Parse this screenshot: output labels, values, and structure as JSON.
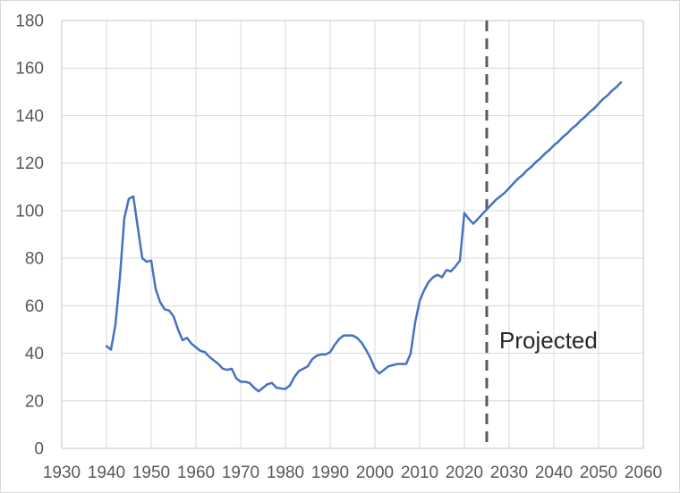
{
  "chart_data": {
    "type": "line",
    "title": "",
    "xlabel": "",
    "ylabel": "",
    "xlim": [
      1930,
      2060
    ],
    "ylim": [
      0,
      180
    ],
    "x_ticks": [
      1930,
      1940,
      1950,
      1960,
      1970,
      1980,
      1990,
      2000,
      2010,
      2020,
      2030,
      2040,
      2050,
      2060
    ],
    "y_ticks": [
      0,
      20,
      40,
      60,
      80,
      100,
      120,
      140,
      160,
      180
    ],
    "grid": true,
    "gridline_color": "#D9D9D9",
    "plot_border_color": "#C6C6C6",
    "axis_label_color": "#595959",
    "divider": {
      "x": 2025,
      "style": "dashed",
      "color": "#595959",
      "label": "Projected",
      "label_x": 2027.8,
      "label_y": 45.5
    },
    "series": [
      {
        "name": "debt-percent-of-gdp",
        "color": "#4472C4",
        "points": [
          [
            1940,
            43
          ],
          [
            1941,
            41.5
          ],
          [
            1942,
            52
          ],
          [
            1943,
            72
          ],
          [
            1944,
            97
          ],
          [
            1945,
            105
          ],
          [
            1946,
            106
          ],
          [
            1947,
            93
          ],
          [
            1948,
            80
          ],
          [
            1949,
            78.5
          ],
          [
            1950,
            79
          ],
          [
            1951,
            67
          ],
          [
            1952,
            61.5
          ],
          [
            1953,
            58.5
          ],
          [
            1954,
            58
          ],
          [
            1955,
            55.5
          ],
          [
            1956,
            50
          ],
          [
            1957,
            45.5
          ],
          [
            1958,
            46.5
          ],
          [
            1959,
            44
          ],
          [
            1960,
            42.5
          ],
          [
            1961,
            41
          ],
          [
            1962,
            40.5
          ],
          [
            1963,
            38.5
          ],
          [
            1964,
            37
          ],
          [
            1965,
            35.5
          ],
          [
            1966,
            33.5
          ],
          [
            1967,
            33
          ],
          [
            1968,
            33.5
          ],
          [
            1969,
            29.5
          ],
          [
            1970,
            28
          ],
          [
            1971,
            28
          ],
          [
            1972,
            27.5
          ],
          [
            1973,
            25.5
          ],
          [
            1974,
            24
          ],
          [
            1975,
            25.5
          ],
          [
            1976,
            27
          ],
          [
            1977,
            27.5
          ],
          [
            1978,
            25.5
          ],
          [
            1979,
            25.2
          ],
          [
            1980,
            25
          ],
          [
            1981,
            26.5
          ],
          [
            1982,
            30
          ],
          [
            1983,
            32.5
          ],
          [
            1984,
            33.5
          ],
          [
            1985,
            34.5
          ],
          [
            1986,
            37.5
          ],
          [
            1987,
            39
          ],
          [
            1988,
            39.5
          ],
          [
            1989,
            39.5
          ],
          [
            1990,
            40.5
          ],
          [
            1991,
            43.5
          ],
          [
            1992,
            46
          ],
          [
            1993,
            47.5
          ],
          [
            1994,
            47.5
          ],
          [
            1995,
            47.5
          ],
          [
            1996,
            46.5
          ],
          [
            1997,
            44.5
          ],
          [
            1998,
            41.5
          ],
          [
            1999,
            38
          ],
          [
            2000,
            33.5
          ],
          [
            2001,
            31.5
          ],
          [
            2002,
            33
          ],
          [
            2003,
            34.5
          ],
          [
            2004,
            35
          ],
          [
            2005,
            35.5
          ],
          [
            2006,
            35.5
          ],
          [
            2007,
            35.5
          ],
          [
            2008,
            40
          ],
          [
            2009,
            53
          ],
          [
            2010,
            62
          ],
          [
            2011,
            66.5
          ],
          [
            2012,
            70
          ],
          [
            2013,
            72
          ],
          [
            2014,
            73
          ],
          [
            2015,
            72
          ],
          [
            2016,
            75
          ],
          [
            2017,
            74.5
          ],
          [
            2018,
            76.5
          ],
          [
            2019,
            79
          ],
          [
            2020,
            99
          ],
          [
            2021,
            96.5
          ],
          [
            2022,
            94.5
          ],
          [
            2023,
            96.5
          ],
          [
            2024,
            98.5
          ],
          [
            2025,
            100.5
          ],
          [
            2026,
            102.5
          ],
          [
            2027,
            104.5
          ],
          [
            2028,
            106
          ],
          [
            2029,
            107.5
          ],
          [
            2030,
            109.5
          ],
          [
            2031,
            111.5
          ],
          [
            2032,
            113.5
          ],
          [
            2033,
            115
          ],
          [
            2034,
            117
          ],
          [
            2035,
            118.5
          ],
          [
            2036,
            120.5
          ],
          [
            2037,
            122
          ],
          [
            2038,
            124
          ],
          [
            2039,
            125.5
          ],
          [
            2040,
            127.5
          ],
          [
            2041,
            129
          ],
          [
            2042,
            131
          ],
          [
            2043,
            132.5
          ],
          [
            2044,
            134.5
          ],
          [
            2045,
            136
          ],
          [
            2046,
            138
          ],
          [
            2047,
            139.5
          ],
          [
            2048,
            141.5
          ],
          [
            2049,
            143
          ],
          [
            2050,
            145
          ],
          [
            2051,
            147
          ],
          [
            2052,
            148.5
          ],
          [
            2053,
            150.5
          ],
          [
            2054,
            152
          ],
          [
            2055,
            154
          ]
        ]
      }
    ]
  }
}
